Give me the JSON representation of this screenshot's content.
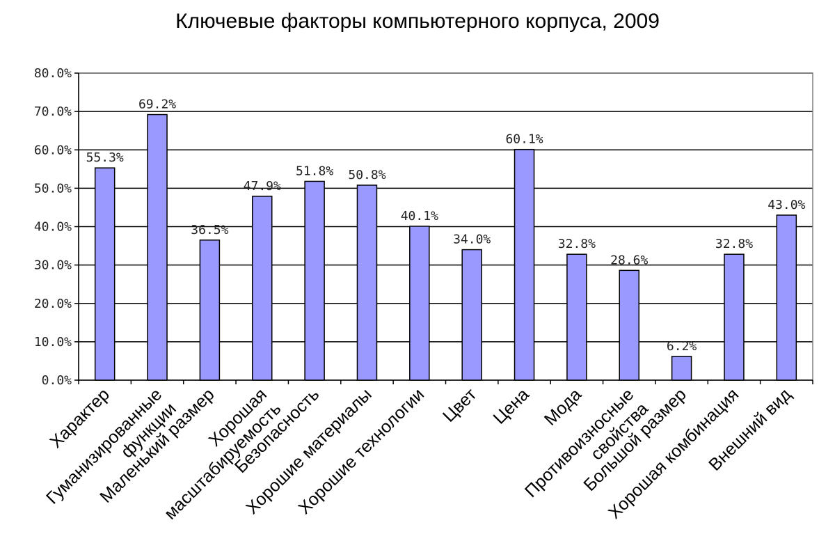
{
  "chart_data": {
    "type": "bar",
    "title": "Ключевые факторы компьютерного корпуса, 2009",
    "xlabel": "",
    "ylabel": "",
    "ylim": [
      0,
      80
    ],
    "y_ticks": [
      {
        "value": 0,
        "label": "0.0%"
      },
      {
        "value": 10,
        "label": "10.0%"
      },
      {
        "value": 20,
        "label": "20.0%"
      },
      {
        "value": 30,
        "label": "30.0%"
      },
      {
        "value": 40,
        "label": "40.0%"
      },
      {
        "value": 50,
        "label": "50.0%"
      },
      {
        "value": 60,
        "label": "60.0%"
      },
      {
        "value": 70,
        "label": "70.0%"
      },
      {
        "value": 80,
        "label": "80.0%"
      }
    ],
    "categories": [
      [
        "Характер"
      ],
      [
        "Гуманизированные",
        "функции"
      ],
      [
        "Маленький размер"
      ],
      [
        "Хорошая",
        "масштабируемость"
      ],
      [
        "Безопасность"
      ],
      [
        "Хорошие материалы"
      ],
      [
        "Хорошие технологии"
      ],
      [
        "Цвет"
      ],
      [
        "Цена"
      ],
      [
        "Мода"
      ],
      [
        "Противоизносные",
        "свойства"
      ],
      [
        "Большой размер"
      ],
      [
        "Хорошая комбинация"
      ],
      [
        "Внешний вид"
      ]
    ],
    "values": [
      55.3,
      69.2,
      36.5,
      47.9,
      51.8,
      50.8,
      40.1,
      34.0,
      60.1,
      32.8,
      28.6,
      6.2,
      32.8,
      43.0
    ],
    "data_labels": [
      "55.3%",
      "69.2%",
      "36.5%",
      "47.9%",
      "51.8%",
      "50.8%",
      "40.1%",
      "34.0%",
      "60.1%",
      "32.8%",
      "28.6%",
      "6.2%",
      "32.8%",
      "43.0%"
    ],
    "grid": true,
    "bar_color": "#9999ff",
    "bar_edge_color": "#000000"
  }
}
